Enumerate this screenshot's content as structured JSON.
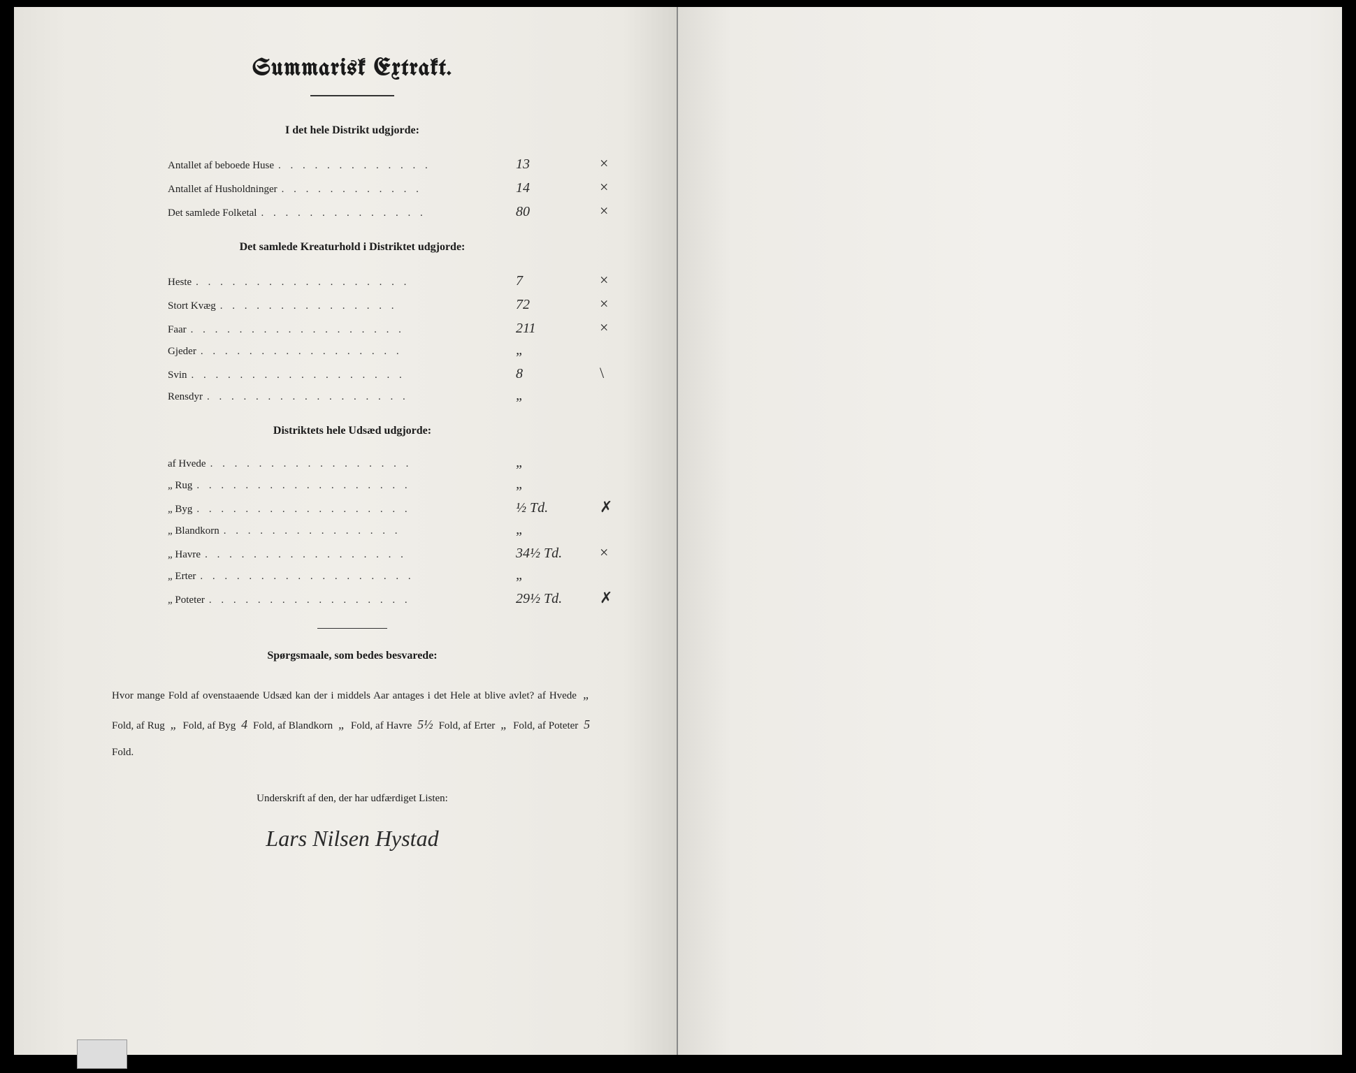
{
  "title": "Summarisk Extrakt.",
  "section1": {
    "heading": "I det hele Distrikt udgjorde:",
    "rows": [
      {
        "label": "Antallet af beboede Huse",
        "value": "13",
        "mark": "×"
      },
      {
        "label": "Antallet af Husholdninger",
        "value": "14",
        "mark": "×"
      },
      {
        "label": "Det samlede Folketal",
        "value": "80",
        "mark": "×"
      }
    ]
  },
  "section2": {
    "heading": "Det samlede Kreaturhold i Distriktet udgjorde:",
    "rows": [
      {
        "label": "Heste",
        "value": "7",
        "mark": "×"
      },
      {
        "label": "Stort Kvæg",
        "value": "72",
        "mark": "×"
      },
      {
        "label": "Faar",
        "value": "211",
        "mark": "×"
      },
      {
        "label": "Gjeder",
        "value": "„",
        "mark": ""
      },
      {
        "label": "Svin",
        "value": "8",
        "mark": "\\"
      },
      {
        "label": "Rensdyr",
        "value": "„",
        "mark": ""
      }
    ]
  },
  "section3": {
    "heading": "Distriktets hele Udsæd udgjorde:",
    "rows": [
      {
        "label": "af Hvede",
        "value": "„",
        "mark": ""
      },
      {
        "label": "„ Rug",
        "value": "„",
        "mark": ""
      },
      {
        "label": "„ Byg",
        "value": "½ Td.",
        "mark": "✗"
      },
      {
        "label": "„ Blandkorn",
        "value": "„",
        "mark": ""
      },
      {
        "label": "„ Havre",
        "value": "34½ Td.",
        "mark": "×"
      },
      {
        "label": "„ Erter",
        "value": "„",
        "mark": ""
      },
      {
        "label": "„ Poteter",
        "value": "29½ Td.",
        "mark": "✗"
      }
    ]
  },
  "questions": {
    "heading": "Spørgsmaale, som bedes besvarede:",
    "text_parts": {
      "intro": "Hvor mange Fold af ovenstaaende Udsæd kan der i middels Aar antages i det Hele at blive avlet? af Hvede",
      "hvede": "„",
      "t1": "Fold, af Rug",
      "rug": "„",
      "t2": "Fold, af Byg",
      "byg": "4",
      "t3": "Fold, af Blandkorn",
      "blandkorn": "„",
      "t4": "Fold, af Havre",
      "havre": "5½",
      "t5": "Fold, af Erter",
      "erter": "„",
      "t6": "Fold, af Poteter",
      "poteter": "5",
      "t7": "Fold."
    }
  },
  "signature": {
    "heading": "Underskrift af den, der har udfærdiget Listen:",
    "name": "Lars Nilsen Hystad"
  }
}
